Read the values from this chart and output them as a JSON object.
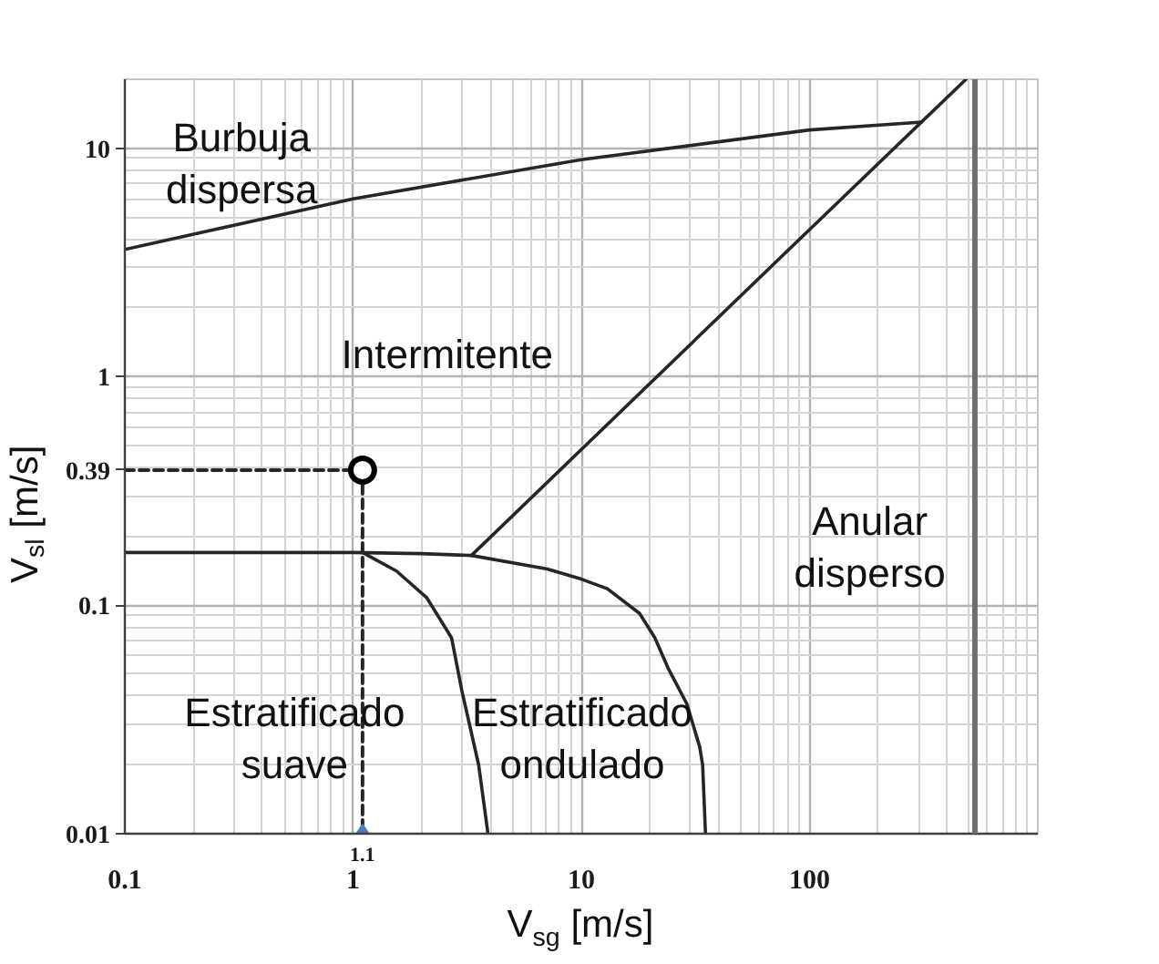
{
  "chart_data": {
    "type": "line",
    "xlabel": "V$_{sg}$ [m/s]",
    "ylabel": "V$_{sl}$ [m/s]",
    "log": "xy",
    "xlim": [
      0.1,
      1000
    ],
    "ylim": [
      0.01,
      20
    ],
    "xticks": [
      0.1,
      1,
      10,
      100
    ],
    "yticks": [
      0.01,
      0.1,
      0.39,
      1,
      10
    ],
    "grid": true,
    "line_style": "solid",
    "series": [
      {
        "color": "#262626",
        "x": [
          0.1,
          1,
          10,
          100,
          310
        ],
        "values": [
          3.6,
          6.0,
          8.9,
          12,
          13
        ]
      },
      {
        "color": "#262626",
        "x": [
          3.3,
          100,
          485
        ],
        "values": [
          0.165,
          4.4,
          20
        ]
      },
      {
        "color": "#262626",
        "x": [
          0.1,
          1,
          2,
          3.3,
          7.1,
          10,
          13,
          18,
          21,
          24,
          29,
          33,
          34,
          35
        ],
        "values": [
          0.17,
          0.17,
          0.168,
          0.165,
          0.144,
          0.13,
          0.118,
          0.092,
          0.072,
          0.053,
          0.037,
          0.024,
          0.02,
          0.01
        ]
      },
      {
        "color": "#262626",
        "x": [
          1.1,
          1.55,
          2.1,
          2.7,
          3,
          3.55,
          3.9
        ],
        "values": [
          0.17,
          0.141,
          0.108,
          0.072,
          0.042,
          0.02,
          0.01
        ]
      },
      {
        "color": "#262626",
        "line_style": "dashed",
        "x": [
          0.1,
          1.1
        ],
        "values": [
          0.39,
          0.39
        ]
      },
      {
        "color": "#262626",
        "line_style": "dashed",
        "x": [
          1.1,
          1.1
        ],
        "values": [
          0.39,
          0.01
        ]
      },
      {
        "type": "scatter",
        "marker": "circle",
        "color": "#000000",
        "x": [
          1.1
        ],
        "values": [
          0.39
        ]
      },
      {
        "type": "scatter",
        "marker": "diamond",
        "color": "#4a7ebb",
        "x": [
          1.1
        ],
        "values": [
          0.01
        ]
      }
    ],
    "ref_lines": [
      {
        "axis": "x",
        "value": 530,
        "color": "#6e6e6e"
      }
    ],
    "annotations": [
      "Burbuja\ndispersa",
      "Intermitente",
      "Anular\ndisperso",
      "Estratificado\nsuave",
      "Estratificado\nondulado",
      {
        "text": "1.1",
        "x": 1.1,
        "y": 0.01
      }
    ]
  }
}
